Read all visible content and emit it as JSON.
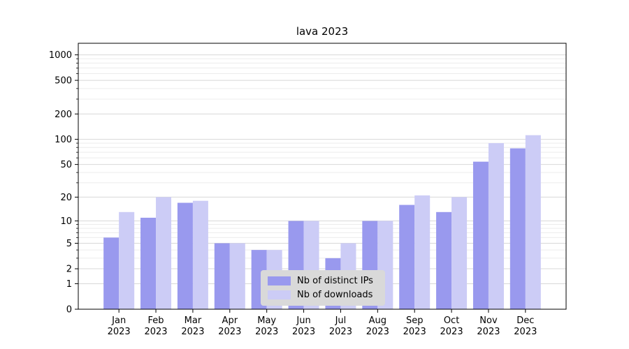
{
  "chart_data": {
    "type": "bar",
    "title": "lava 2023",
    "x_months": [
      "Jan",
      "Feb",
      "Mar",
      "Apr",
      "May",
      "Jun",
      "Jul",
      "Aug",
      "Sep",
      "Oct",
      "Nov",
      "Dec"
    ],
    "x_year": "2023",
    "series": [
      {
        "name": "Nb of distinct IPs",
        "color": "#9999ee",
        "values": [
          6,
          11,
          17,
          5,
          4,
          10,
          3,
          10,
          16,
          13,
          54,
          78
        ]
      },
      {
        "name": "Nb of downloads",
        "color": "#ccccf6",
        "values": [
          13,
          20,
          18,
          5,
          4,
          10,
          5,
          10,
          21,
          20,
          90,
          112
        ]
      }
    ],
    "yscale": "log1p-symlog",
    "ylim": [
      0,
      1370
    ],
    "yticks": [
      0,
      1,
      2,
      5,
      10,
      20,
      50,
      100,
      200,
      500,
      1000
    ],
    "yticks_minor": [
      3,
      4,
      6,
      7,
      8,
      9,
      30,
      40,
      60,
      70,
      80,
      90,
      300,
      400,
      600,
      700,
      800,
      900
    ],
    "grid": true,
    "legend": {
      "position": "lower center",
      "background": "#d9d9d9"
    },
    "colors": {
      "axis": "#000000",
      "grid_major": "#d8d8d8",
      "grid_minor": "#ececec",
      "plot_background": "#ffffff"
    }
  }
}
